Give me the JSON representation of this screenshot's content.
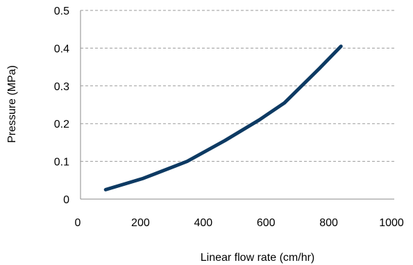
{
  "chart_data": {
    "type": "line",
    "title": "",
    "xlabel": "Linear flow rate (cm/hr)",
    "ylabel": "Pressure (MPa)",
    "xlim": [
      0,
      1000
    ],
    "ylim": [
      0,
      0.5
    ],
    "x_ticks": [
      0,
      200,
      400,
      600,
      800,
      1000
    ],
    "y_ticks": [
      0,
      0.1,
      0.2,
      0.3,
      0.4,
      0.5
    ],
    "x_tick_labels": [
      "0",
      "200",
      "400",
      "600",
      "800",
      "1000"
    ],
    "y_tick_labels": [
      "0",
      "0.1",
      "0.2",
      "0.3",
      "0.4",
      "0.5"
    ],
    "grid": "horizontal dashed",
    "legend": "none",
    "series": [
      {
        "color": "#0d3a63",
        "x": [
          80,
          200,
          340,
          460,
          570,
          650,
          760,
          830
        ],
        "y": [
          0.025,
          0.055,
          0.1,
          0.155,
          0.21,
          0.255,
          0.345,
          0.405
        ]
      }
    ]
  }
}
